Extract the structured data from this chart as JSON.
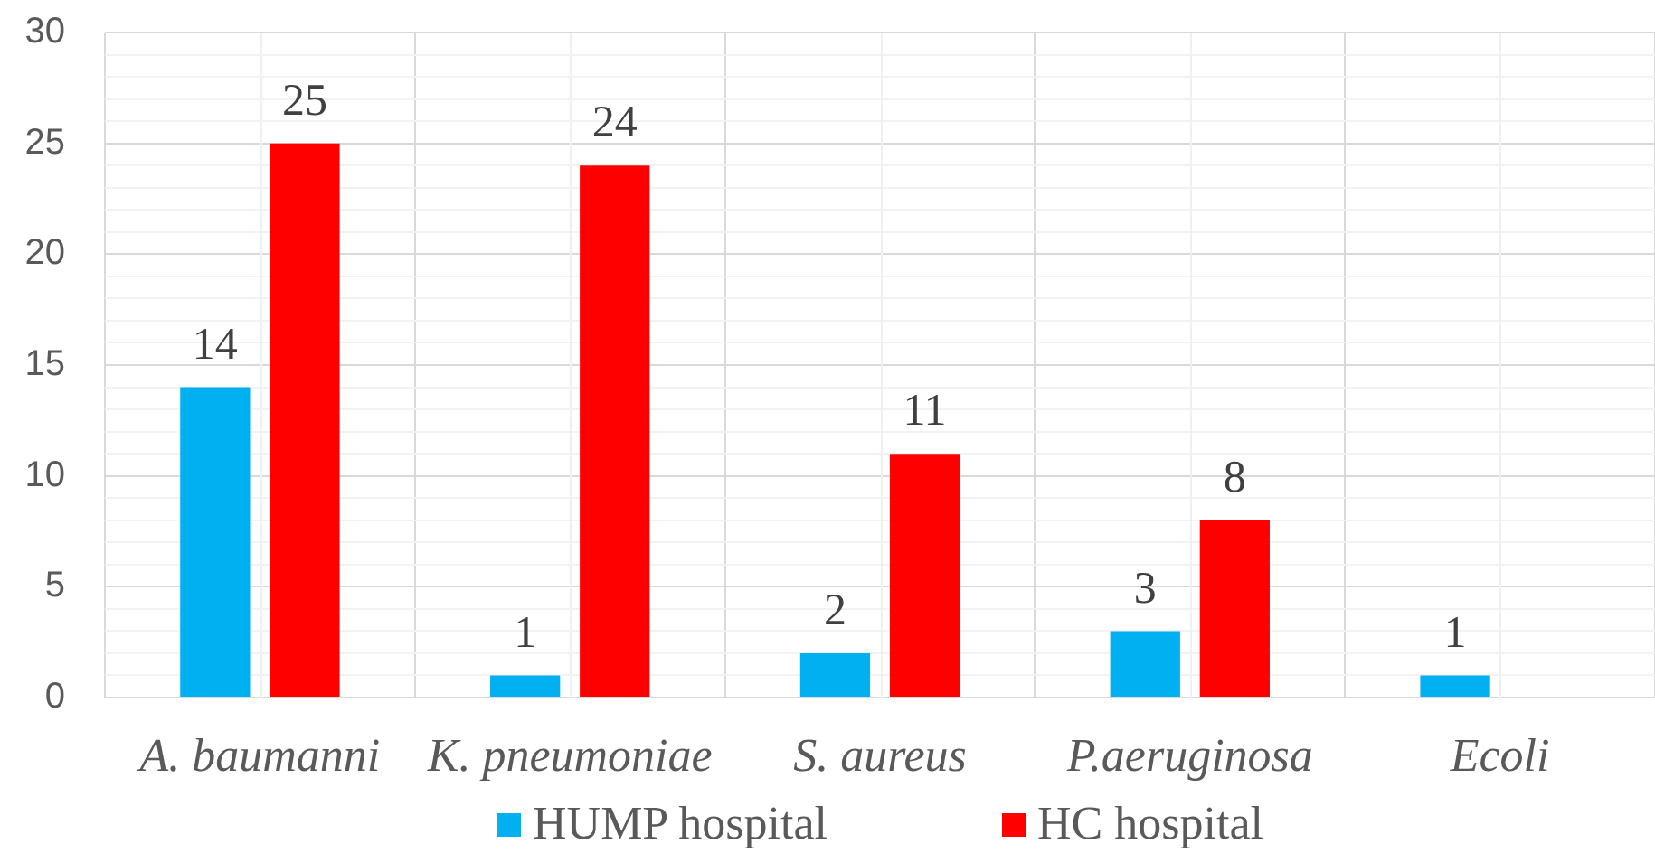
{
  "chart_data": {
    "type": "bar",
    "categories": [
      "A. baumanni",
      "K. pneumoniae",
      "S. aureus",
      "P.aeruginosa",
      "Ecoli"
    ],
    "series": [
      {
        "name": "HUMP hospital",
        "color": "#00b0f0",
        "values": [
          14,
          1,
          2,
          3,
          1
        ]
      },
      {
        "name": "HC hospital",
        "color": "#ff0000",
        "values": [
          25,
          24,
          11,
          8,
          null
        ]
      }
    ],
    "ylim": [
      0,
      30
    ],
    "yticks": [
      0,
      {
        "value": 1,
        "label": null
      },
      {
        "value": 2,
        "label": null
      },
      {
        "value": 3,
        "label": null
      },
      {
        "value": 4,
        "label": null
      },
      5,
      {
        "value": 6,
        "label": null
      },
      {
        "value": 7,
        "label": null
      },
      {
        "value": 8,
        "label": null
      },
      {
        "value": 9,
        "label": null
      },
      10,
      {
        "value": 11,
        "label": null
      },
      {
        "value": 12,
        "label": null
      },
      {
        "value": 13,
        "label": null
      },
      {
        "value": 14,
        "label": null
      },
      15,
      {
        "value": 16,
        "label": null
      },
      {
        "value": 17,
        "label": null
      },
      {
        "value": 18,
        "label": null
      },
      {
        "value": 19,
        "label": null
      },
      20,
      {
        "value": 21,
        "label": null
      },
      {
        "value": 22,
        "label": null
      },
      {
        "value": 23,
        "label": null
      },
      {
        "value": 24,
        "label": null
      },
      25,
      {
        "value": 26,
        "label": null
      },
      {
        "value": 27,
        "label": null
      },
      {
        "value": 28,
        "label": null
      },
      {
        "value": 29,
        "label": null
      },
      30
    ],
    "grid": true,
    "legend": "bottom",
    "data_labels": true
  }
}
